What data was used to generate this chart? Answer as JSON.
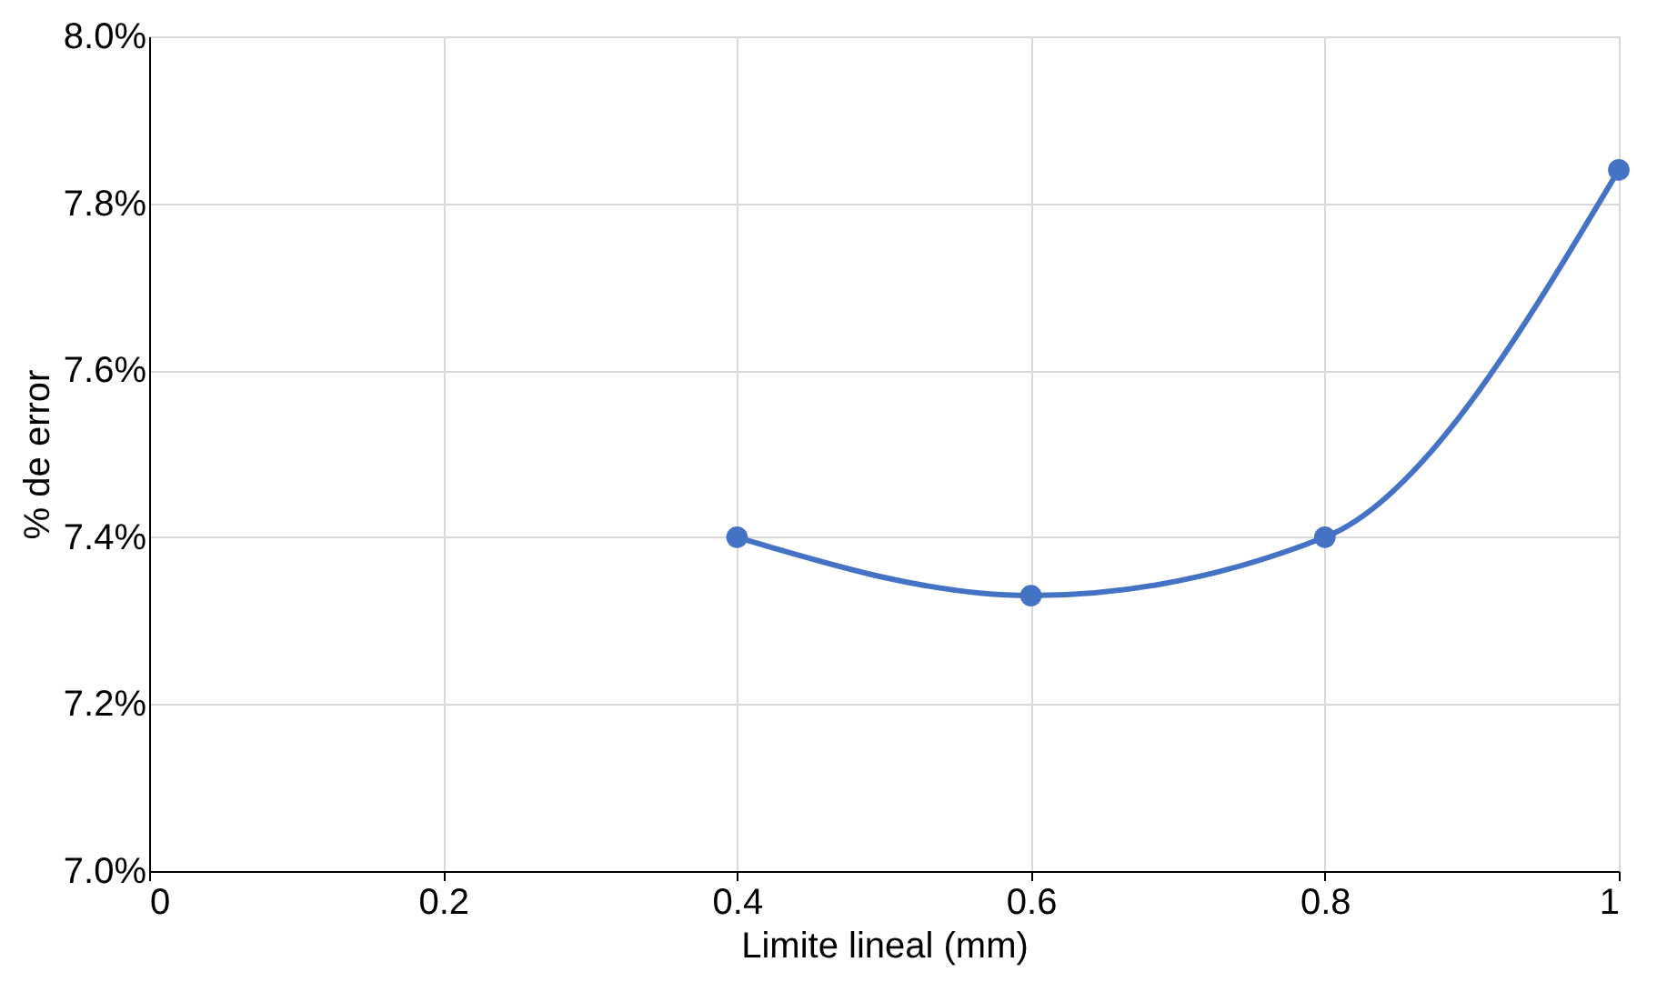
{
  "chart_data": {
    "type": "line",
    "xlabel": "Limite lineal (mm)",
    "ylabel": "% de error",
    "x": [
      0.4,
      0.6,
      0.8,
      1
    ],
    "series": [
      {
        "color": "#4472c4",
        "values": [
          7.4,
          7.33,
          7.4,
          7.84
        ]
      }
    ],
    "xlim": [
      0,
      1
    ],
    "xticks": [
      0,
      0.2,
      0.4,
      0.6,
      0.8,
      1
    ],
    "ylim": [
      7.0,
      8.0
    ],
    "yticks": [
      {
        "value": 7.0,
        "label": "7.0%"
      },
      {
        "value": 7.2,
        "label": "7.2%"
      },
      {
        "value": 7.4,
        "label": "7.4%"
      },
      {
        "value": 7.6,
        "label": "7.6%"
      },
      {
        "value": 7.8,
        "label": "7.8%"
      },
      {
        "value": 8.0,
        "label": "8.0%"
      }
    ],
    "grid": true,
    "marker": "circle",
    "line_style": "solid"
  }
}
